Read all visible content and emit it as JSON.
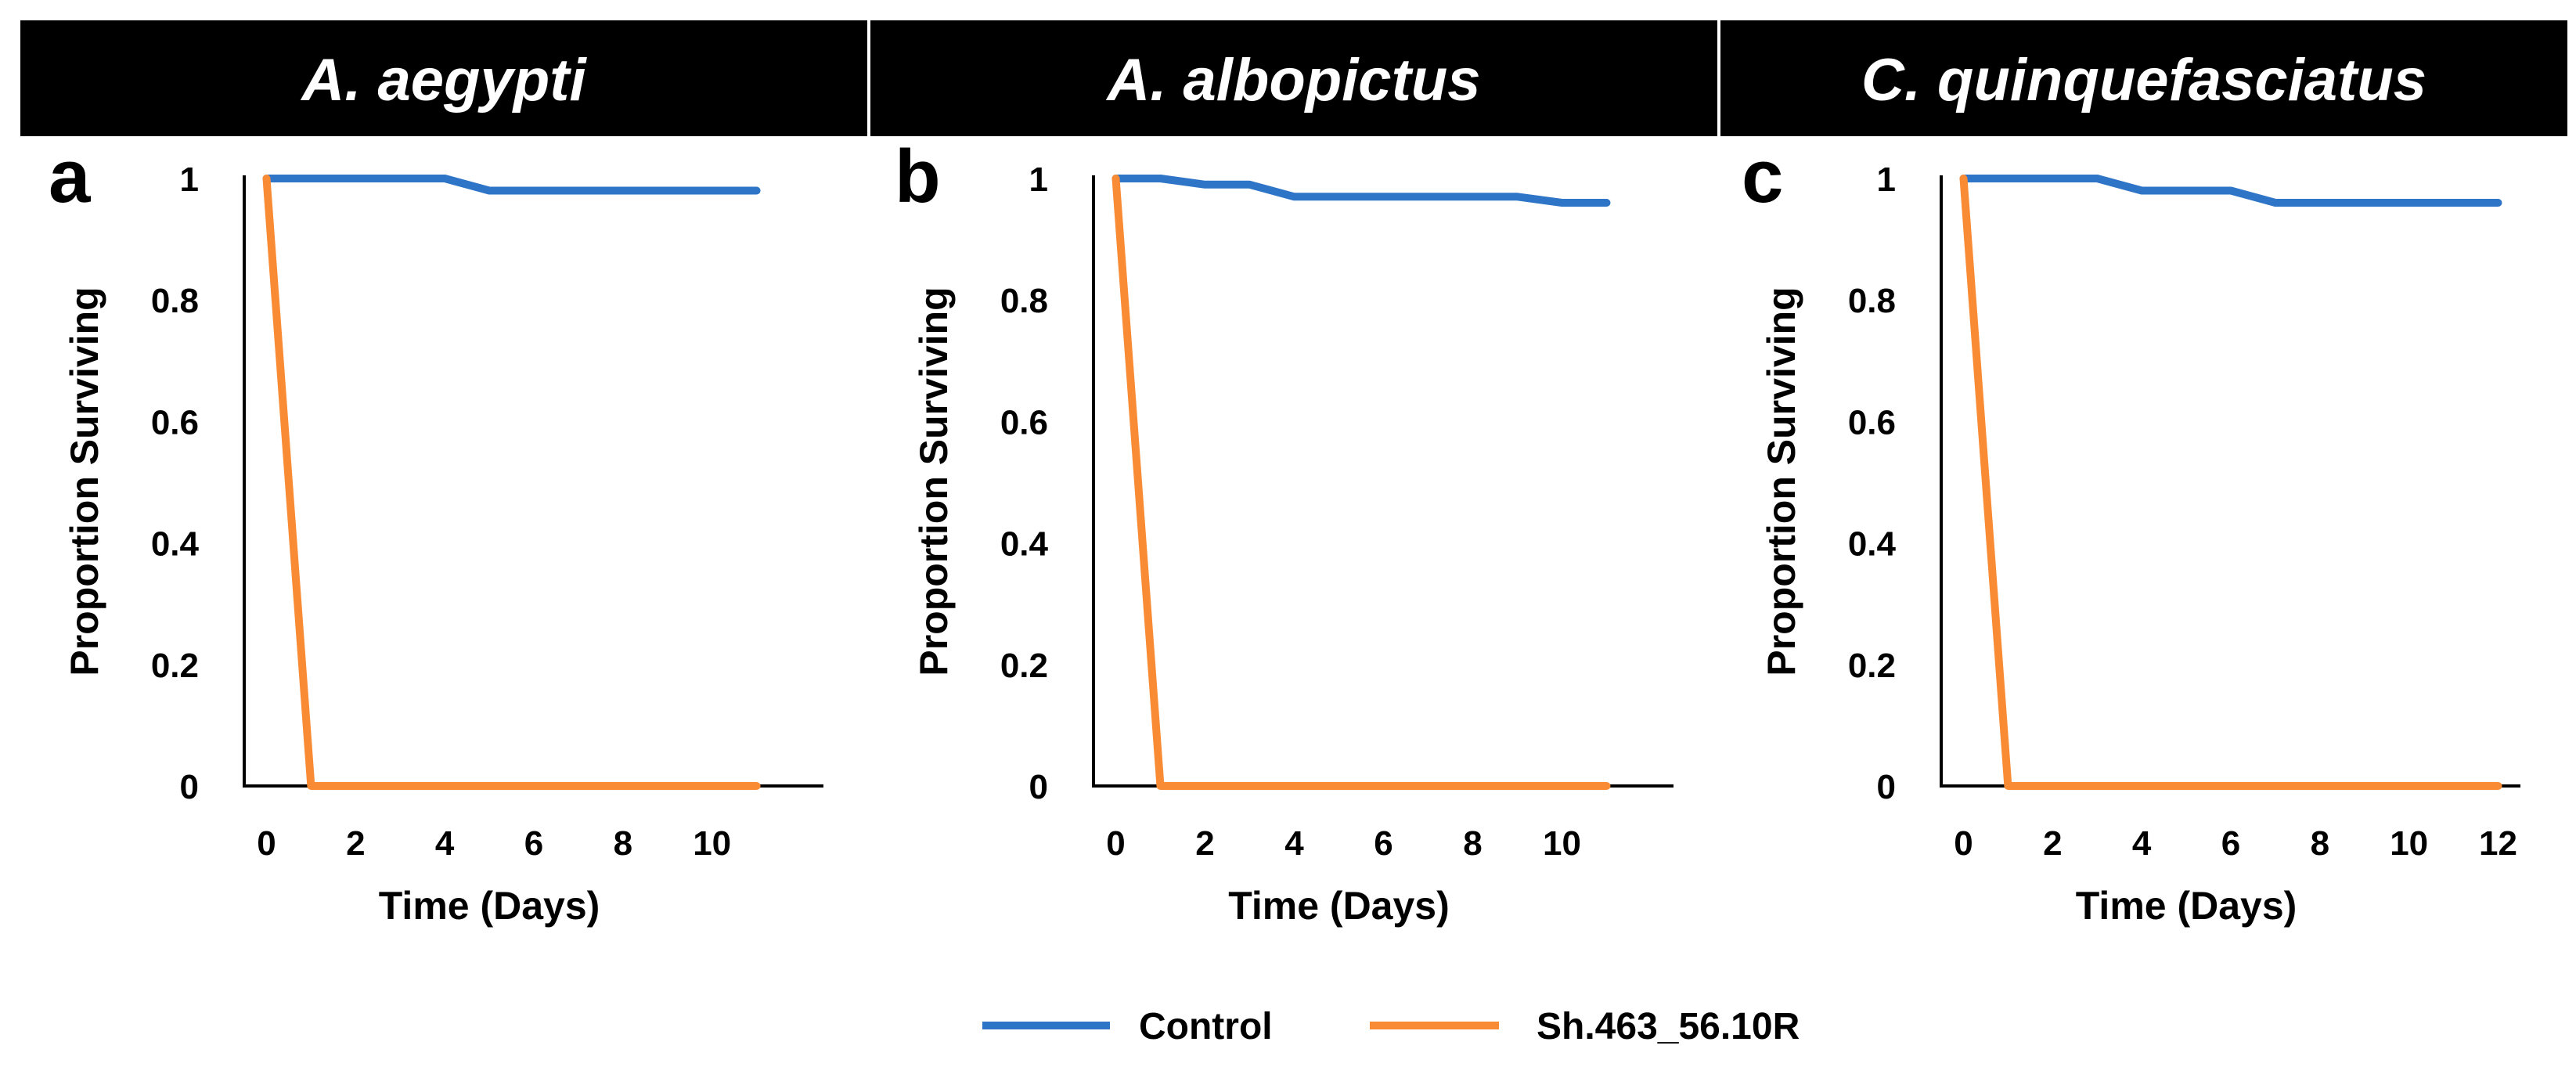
{
  "colors": {
    "banner_bg": "#000000",
    "banner_text": "#ffffff",
    "control": "#2E75C8",
    "treatment": "#F98B35"
  },
  "legend": {
    "control_label": "Control",
    "treatment_label": "Sh.463_56.10R"
  },
  "chart_data": [
    {
      "type": "line",
      "banner": "A. aegypti",
      "panel": "a",
      "xlabel": "Time (Days)",
      "ylabel": "Proportion Surviving",
      "xlim": [
        -0.5,
        12.5
      ],
      "ylim": [
        0,
        1
      ],
      "x_ticks": [
        0,
        2,
        4,
        6,
        8,
        10
      ],
      "y_ticks": [
        0,
        0.2,
        0.4,
        0.6,
        0.8,
        1
      ],
      "y_tick_labels": [
        "0",
        "0.2",
        "0.4",
        "0.6",
        "0.8",
        "1"
      ],
      "series": [
        {
          "name": "Control",
          "x": [
            0,
            1,
            2,
            3,
            4,
            5,
            6,
            7,
            8,
            9,
            10,
            11
          ],
          "values": [
            1,
            1,
            1,
            1,
            1,
            0.98,
            0.98,
            0.98,
            0.98,
            0.98,
            0.98,
            0.98
          ]
        },
        {
          "name": "Sh.463_56.10R",
          "x": [
            0,
            1,
            2,
            3,
            4,
            5,
            6,
            7,
            8,
            9,
            10,
            11
          ],
          "values": [
            1,
            0,
            0,
            0,
            0,
            0,
            0,
            0,
            0,
            0,
            0,
            0
          ]
        }
      ]
    },
    {
      "type": "line",
      "banner": "A. albopictus",
      "panel": "b",
      "xlabel": "Time (Days)",
      "ylabel": "Proportion Surviving",
      "xlim": [
        -0.5,
        12.5
      ],
      "ylim": [
        0,
        1
      ],
      "x_ticks": [
        0,
        2,
        4,
        6,
        8,
        10
      ],
      "y_ticks": [
        0,
        0.2,
        0.4,
        0.6,
        0.8,
        1
      ],
      "y_tick_labels": [
        "0",
        "0.2",
        "0.4",
        "0.6",
        "0.8",
        "1"
      ],
      "series": [
        {
          "name": "Control",
          "x": [
            0,
            1,
            2,
            3,
            4,
            5,
            6,
            7,
            8,
            9,
            10,
            11
          ],
          "values": [
            1,
            1,
            0.99,
            0.99,
            0.97,
            0.97,
            0.97,
            0.97,
            0.97,
            0.97,
            0.96,
            0.96
          ]
        },
        {
          "name": "Sh.463_56.10R",
          "x": [
            0,
            1,
            2,
            3,
            4,
            5,
            6,
            7,
            8,
            9,
            10,
            11
          ],
          "values": [
            1,
            0,
            0,
            0,
            0,
            0,
            0,
            0,
            0,
            0,
            0,
            0
          ]
        }
      ]
    },
    {
      "type": "line",
      "banner": "C. quinquefasciatus",
      "panel": "c",
      "xlabel": "Time (Days)",
      "ylabel": "Proportion Surviving",
      "xlim": [
        -0.5,
        12.5
      ],
      "ylim": [
        0,
        1
      ],
      "x_ticks": [
        0,
        2,
        4,
        6,
        8,
        10,
        12
      ],
      "y_ticks": [
        0,
        0.2,
        0.4,
        0.6,
        0.8,
        1
      ],
      "y_tick_labels": [
        "0",
        "0.2",
        "0.4",
        "0.6",
        "0.8",
        "1"
      ],
      "series": [
        {
          "name": "Control",
          "x": [
            0,
            1,
            2,
            3,
            4,
            5,
            6,
            7,
            8,
            9,
            10,
            11,
            12
          ],
          "values": [
            1,
            1,
            1,
            1,
            0.98,
            0.98,
            0.98,
            0.96,
            0.96,
            0.96,
            0.96,
            0.96,
            0.96
          ]
        },
        {
          "name": "Sh.463_56.10R",
          "x": [
            0,
            1,
            2,
            3,
            4,
            5,
            6,
            7,
            8,
            9,
            10,
            11,
            12
          ],
          "values": [
            1,
            0,
            0,
            0,
            0,
            0,
            0,
            0,
            0,
            0,
            0,
            0,
            0
          ]
        }
      ]
    }
  ]
}
